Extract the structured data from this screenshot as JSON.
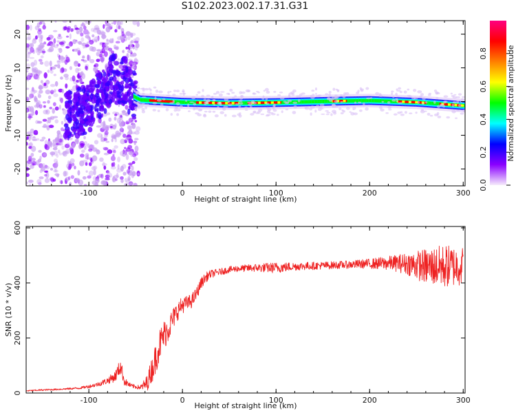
{
  "figure": {
    "title": "S102.2023.002.17.31.G31"
  },
  "chart_data": [
    {
      "type": "heatmap",
      "title": "S102.2023.002.17.31.G31",
      "xlabel": "Height of straight line (km)",
      "ylabel": "Frequency (Hz)",
      "xlim": [
        -167,
        302
      ],
      "ylim": [
        -25,
        24
      ],
      "x_ticks": [
        "-100",
        "0",
        "100",
        "200",
        "300"
      ],
      "y_ticks": [
        "-20",
        "-10",
        "0",
        "10",
        "20"
      ],
      "grid": false,
      "colorbar": {
        "label": "Normalized spectral amplitude",
        "range": [
          0.0,
          1.0
        ],
        "ticks": [
          "0.0",
          "0.2",
          "0.4",
          "0.6",
          "0.8"
        ],
        "colors": [
          "#f6ecfb",
          "#8a00ff",
          "#0000ff",
          "#00ffff",
          "#00ff00",
          "#ffff00",
          "#ff8000",
          "#ff0000",
          "#ff0080"
        ]
      },
      "band": {
        "center_hz": [
          {
            "x": -165,
            "y": -5
          },
          {
            "x": -120,
            "y": -4
          },
          {
            "x": -100,
            "y": -2
          },
          {
            "x": -85,
            "y": 3
          },
          {
            "x": -75,
            "y": 7
          },
          {
            "x": -62,
            "y": 6
          },
          {
            "x": -55,
            "y": 2
          },
          {
            "x": -45,
            "y": 0.5
          },
          {
            "x": 0,
            "y": -0.2
          },
          {
            "x": 50,
            "y": -0.5
          },
          {
            "x": 100,
            "y": -0.3
          },
          {
            "x": 160,
            "y": 0.1
          },
          {
            "x": 200,
            "y": 0.3
          },
          {
            "x": 250,
            "y": -0.2
          },
          {
            "x": 300,
            "y": -1.2
          }
        ]
      }
    },
    {
      "type": "line",
      "xlabel": "Height of straight line (km)",
      "ylabel": "SNR (10 * v/v)",
      "xlim": [
        -167,
        302
      ],
      "ylim": [
        0,
        605
      ],
      "x_ticks": [
        "-100",
        "0",
        "100",
        "200",
        "300"
      ],
      "y_ticks": [
        "0",
        "200",
        "400",
        "600"
      ],
      "grid": false,
      "series": [
        {
          "color": "#ee2222",
          "x": [
            -167,
            -150,
            -130,
            -110,
            -100,
            -90,
            -80,
            -72,
            -66,
            -62,
            -55,
            -45,
            -38,
            -30,
            -25,
            -20,
            -15,
            -10,
            -5,
            0,
            5,
            10,
            15,
            20,
            25,
            30,
            40,
            50,
            60,
            80,
            100,
            120,
            150,
            175,
            200,
            225,
            240,
            260,
            280,
            300
          ],
          "y": [
            8,
            11,
            14,
            18,
            24,
            32,
            45,
            60,
            98,
            42,
            26,
            20,
            35,
            110,
            170,
            210,
            235,
            270,
            300,
            320,
            325,
            335,
            360,
            400,
            420,
            432,
            440,
            448,
            452,
            455,
            455,
            460,
            463,
            466,
            470,
            472,
            470,
            460,
            460,
            462
          ],
          "noise": [
            2,
            3,
            3,
            4,
            6,
            8,
            12,
            20,
            30,
            15,
            8,
            8,
            30,
            55,
            60,
            55,
            50,
            40,
            35,
            30,
            28,
            26,
            24,
            20,
            18,
            15,
            12,
            12,
            12,
            15,
            20,
            15,
            14,
            14,
            18,
            28,
            40,
            65,
            80,
            70
          ]
        }
      ]
    }
  ]
}
